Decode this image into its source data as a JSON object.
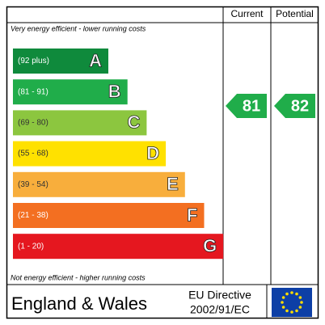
{
  "header": {
    "current": "Current",
    "potential": "Potential"
  },
  "top_note": "Very energy efficient - lower running costs",
  "bottom_note": "Not energy efficient - higher running costs",
  "bands": [
    {
      "range": "(92 plus)",
      "letter": "A",
      "color": "#0f8a3c"
    },
    {
      "range": "(81 - 91)",
      "letter": "B",
      "color": "#20ad4a"
    },
    {
      "range": "(69 - 80)",
      "letter": "C",
      "color": "#8cc63f"
    },
    {
      "range": "(55 - 68)",
      "letter": "D",
      "color": "#ffe100"
    },
    {
      "range": "(39 - 54)",
      "letter": "E",
      "color": "#f8ae3c"
    },
    {
      "range": "(21 - 38)",
      "letter": "F",
      "color": "#f36f21"
    },
    {
      "range": "(1 - 20)",
      "letter": "G",
      "color": "#e5171f"
    }
  ],
  "ratings": {
    "current": 81,
    "potential": 82,
    "color": "#20ad4a"
  },
  "footer": {
    "region": "England & Wales",
    "directive_line1": "EU Directive",
    "directive_line2": "2002/91/EC"
  }
}
